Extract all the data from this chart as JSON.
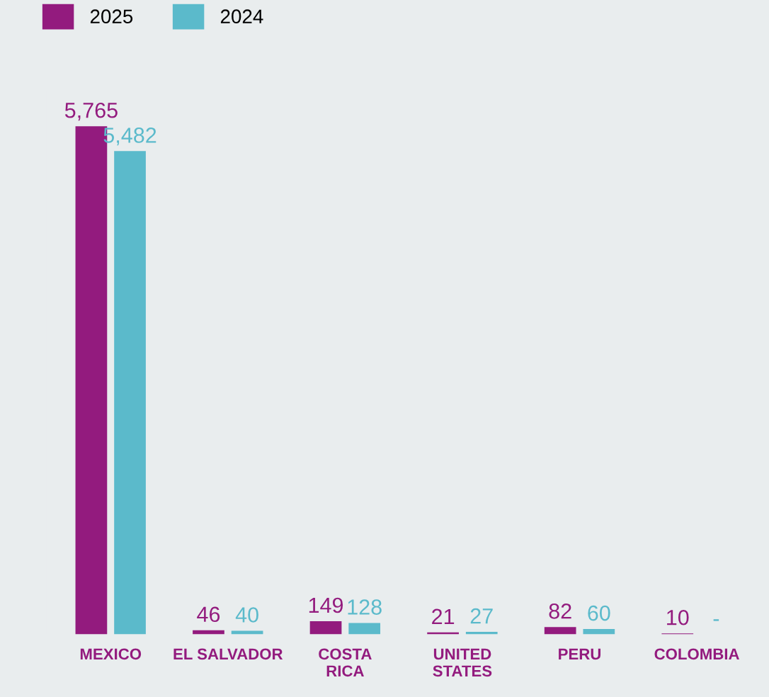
{
  "chart_data": {
    "type": "bar",
    "categories": [
      "MEXICO",
      "EL SALVADOR",
      "COSTA\nRICA",
      "UNITED\nSTATES",
      "PERU",
      "COLOMBIA"
    ],
    "series": [
      {
        "name": "2025",
        "color": "#931b7e",
        "values": [
          5765,
          46,
          149,
          21,
          82,
          10
        ],
        "value_labels": [
          "5,765",
          "46",
          "149",
          "21",
          "82",
          "10"
        ]
      },
      {
        "name": "2024",
        "color": "#5bbacb",
        "values": [
          5482,
          40,
          128,
          27,
          60,
          null
        ],
        "value_labels": [
          "5,482",
          "40",
          "128",
          "27",
          "60",
          "-"
        ]
      }
    ],
    "legend": "top left",
    "grid": false,
    "tick_labels": "x"
  }
}
